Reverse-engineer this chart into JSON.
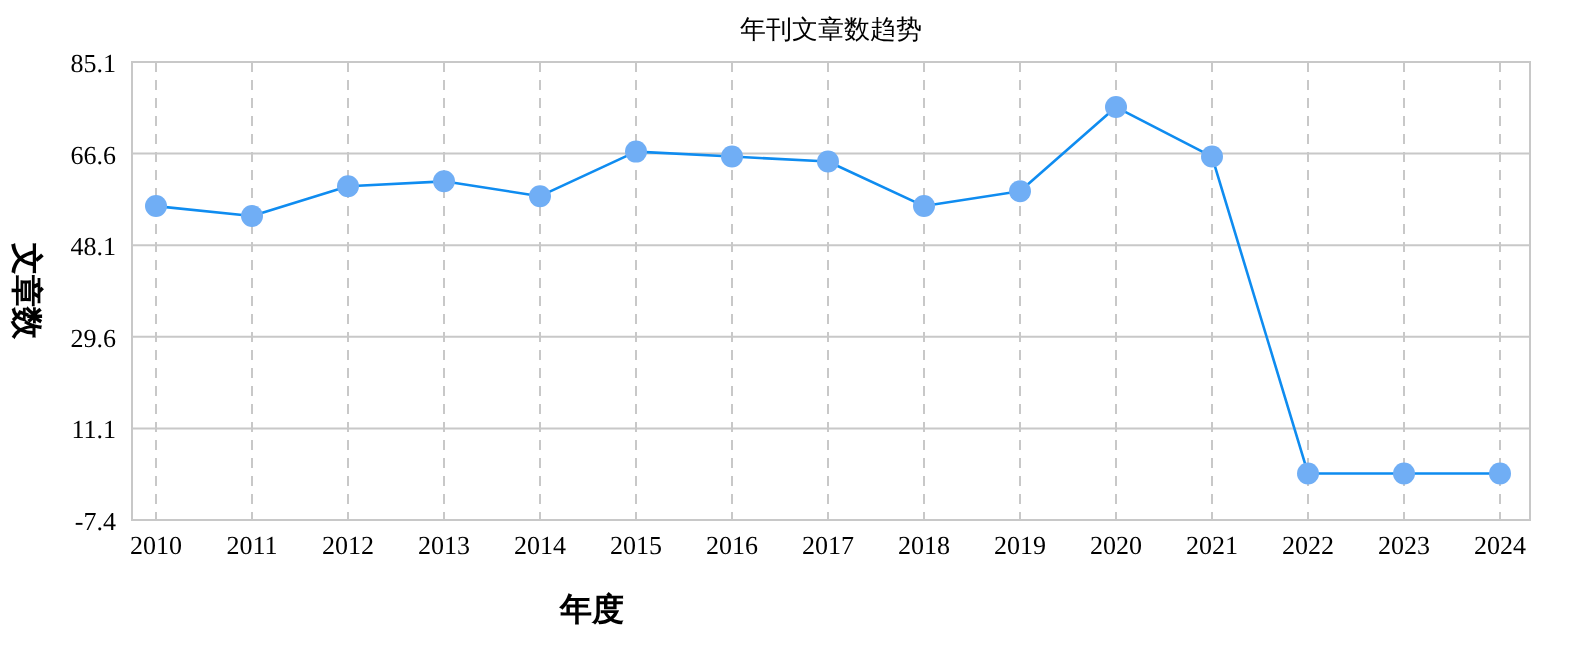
{
  "chart_data": {
    "type": "line",
    "title": "年刊文章数趋势",
    "xlabel": "年度",
    "ylabel": "文章数",
    "categories": [
      "2010",
      "2011",
      "2012",
      "2013",
      "2014",
      "2015",
      "2016",
      "2017",
      "2018",
      "2019",
      "2020",
      "2021",
      "2022",
      "2023",
      "2024"
    ],
    "series": [
      {
        "color": "#0f8cf0",
        "values": [
          56,
          54,
          60,
          61,
          58,
          67,
          66,
          65,
          56,
          59,
          76,
          66,
          2,
          2,
          2
        ]
      }
    ],
    "ylim": [
      -7.4,
      85.1
    ],
    "yticks": [
      -7.4,
      11.1,
      29.6,
      48.1,
      66.6,
      85.1
    ],
    "grid": true,
    "marker": "circle",
    "line_style": "solid"
  }
}
